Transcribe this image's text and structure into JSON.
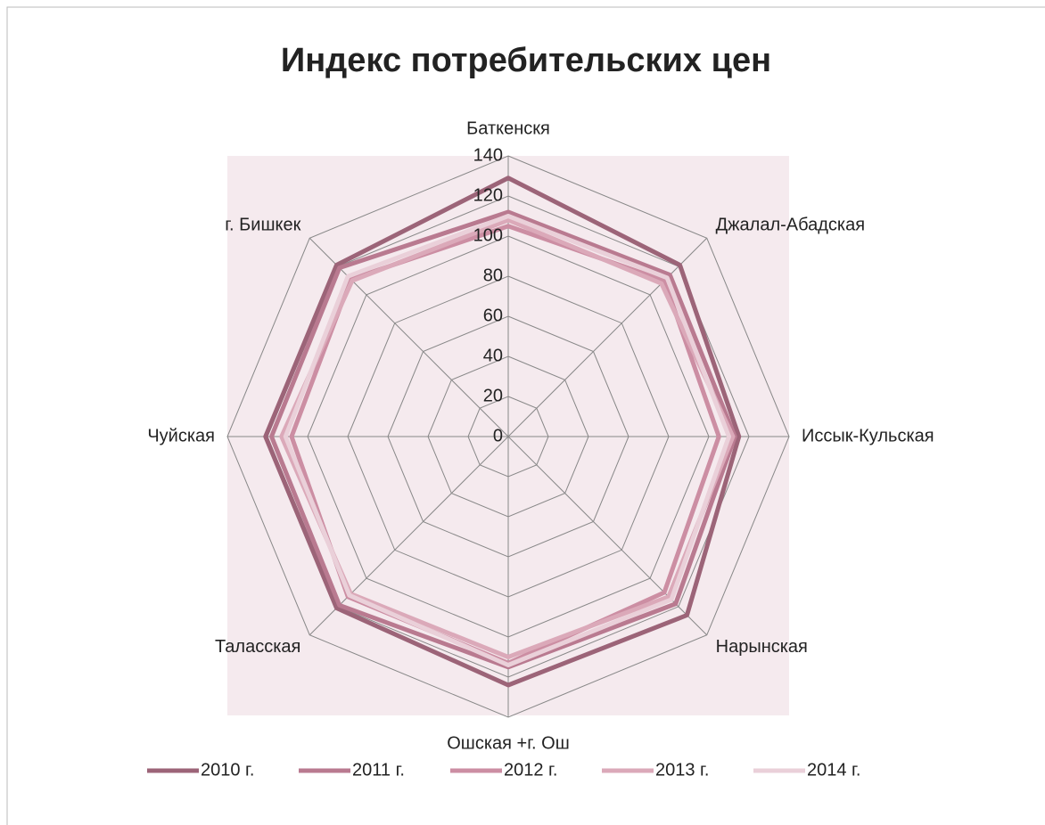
{
  "chart_data": {
    "type": "radar",
    "title": "Индекс потребительских цен",
    "categories": [
      "Баткенскя",
      "Джалал-Абадская",
      "Иссык-Кульская",
      "Нарынская",
      "Ошская +г. Ош",
      "Таласская",
      "Чуйская",
      "г. Бишкек"
    ],
    "series": [
      {
        "name": "2010 г.",
        "color": "#9c6478",
        "values": [
          129,
          121,
          115,
          126,
          124,
          121,
          121,
          121
        ]
      },
      {
        "name": "2011 г.",
        "color": "#b97a90",
        "values": [
          112,
          114,
          113,
          118,
          115,
          119,
          118,
          119
        ]
      },
      {
        "name": "2012 г.",
        "color": "#cc8ea3",
        "values": [
          105,
          110,
          105,
          110,
          113,
          113,
          108,
          111
        ]
      },
      {
        "name": "2013 г.",
        "color": "#dba9b9",
        "values": [
          108,
          108,
          112,
          113,
          110,
          111,
          113,
          110
        ]
      },
      {
        "name": "2014 г.",
        "color": "#ead0d9",
        "values": [
          110,
          112,
          110,
          115,
          114,
          112,
          111,
          113
        ]
      }
    ],
    "ylim": [
      0,
      140
    ],
    "yticks": [
      0,
      20,
      40,
      60,
      80,
      100,
      120,
      140
    ],
    "grid": true,
    "legend": "bottom"
  }
}
